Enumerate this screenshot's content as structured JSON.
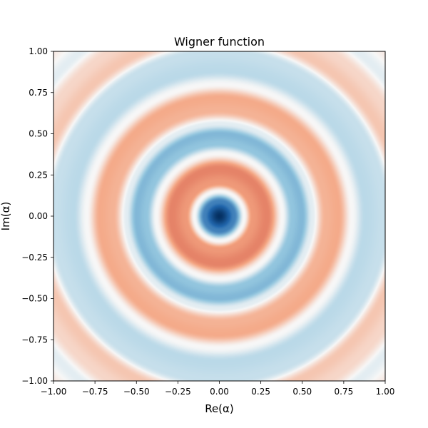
{
  "chart_data": {
    "type": "heatmap",
    "title": "Wigner function",
    "xlabel": "Re(α)",
    "ylabel": "Im(α)",
    "xlim": [
      -1.0,
      1.0
    ],
    "ylim": [
      -1.0,
      1.0
    ],
    "xticks": [
      "−1.00",
      "−0.75",
      "−0.50",
      "−0.25",
      "0.00",
      "0.25",
      "0.50",
      "0.75",
      "1.00"
    ],
    "yticks": [
      "−1.00",
      "−0.75",
      "−0.50",
      "−0.25",
      "0.00",
      "0.25",
      "0.50",
      "0.75",
      "1.00"
    ],
    "xtick_values": [
      -1.0,
      -0.75,
      -0.5,
      -0.25,
      0.0,
      0.25,
      0.5,
      0.75,
      1.0
    ],
    "ytick_values": [
      -1.0,
      -0.75,
      -0.5,
      -0.25,
      0.0,
      0.25,
      0.5,
      0.75,
      1.0
    ],
    "colormap": "RdBu",
    "grid": false,
    "pattern": "concentric rings centered at origin",
    "radial_profile": {
      "radius": [
        0.0,
        0.09,
        0.15,
        0.2,
        0.29,
        0.38,
        0.44,
        0.5,
        0.56,
        0.64,
        0.72,
        0.8,
        0.88,
        1.0,
        1.1,
        1.2,
        1.3,
        1.42
      ],
      "value": [
        -1.0,
        -0.5,
        0.0,
        0.35,
        0.45,
        0.0,
        -0.25,
        -0.3,
        -0.05,
        0.25,
        0.28,
        0.0,
        -0.15,
        -0.12,
        0.18,
        0.12,
        -0.05,
        0.05
      ]
    },
    "colors": {
      "min": "#053061",
      "low": "#2166ac",
      "mid_low": "#92c5de",
      "center": "#f7f7f7",
      "mid_high": "#f4a582",
      "high": "#d6604d"
    }
  }
}
